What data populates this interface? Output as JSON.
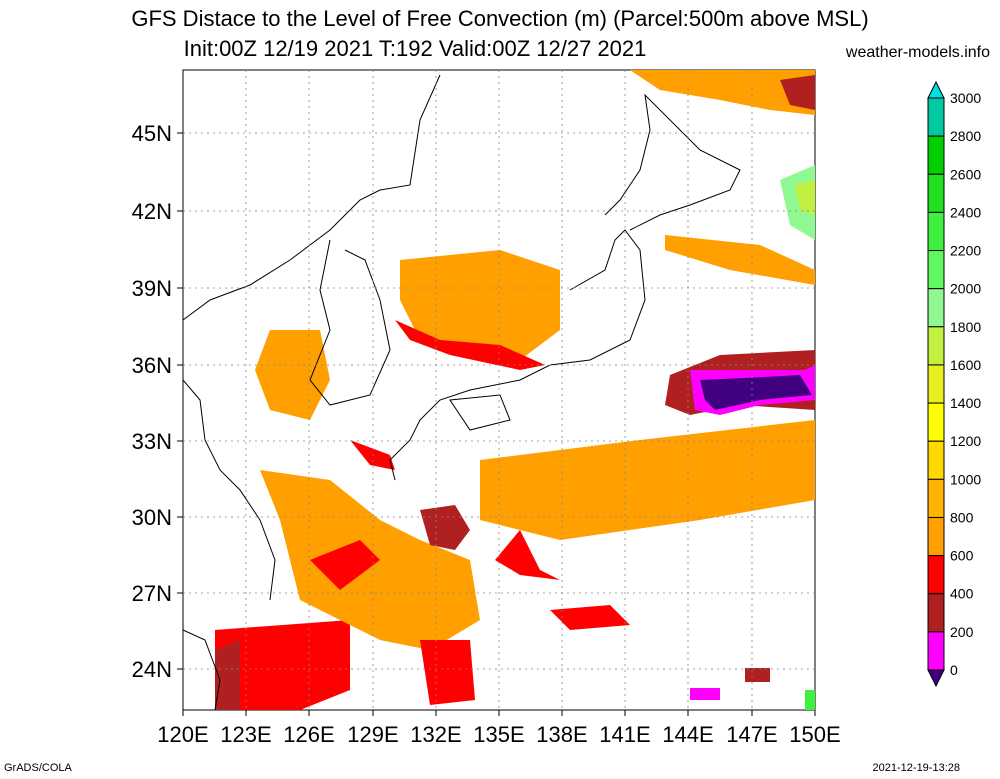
{
  "title": "GFS Distace to the Level of Free Convection (m) (Parcel:500m above MSL)",
  "subtitle": "Init:00Z 12/19 2021 T:192 Valid:00Z 12/27 2021",
  "site": "weather-models.info",
  "footer_left": "GrADS/COLA",
  "footer_right": "2021-12-19-13:28",
  "lat_labels": [
    "45N",
    "42N",
    "39N",
    "36N",
    "33N",
    "30N",
    "27N",
    "24N"
  ],
  "lon_labels": [
    "120E",
    "123E",
    "126E",
    "129E",
    "132E",
    "135E",
    "138E",
    "141E",
    "144E",
    "147E",
    "150E"
  ],
  "colorbar": {
    "labels": [
      "3000",
      "2800",
      "2600",
      "2400",
      "2200",
      "2000",
      "1800",
      "1600",
      "1400",
      "1200",
      "1000",
      "800",
      "600",
      "400",
      "200",
      "0"
    ],
    "colors": [
      "#00e0e0",
      "#00c8a0",
      "#00d000",
      "#20e020",
      "#40f040",
      "#60f860",
      "#90f890",
      "#c0f040",
      "#e8f020",
      "#ffff00",
      "#ffd800",
      "#ffb400",
      "#ffa000",
      "#ff0000",
      "#b02020",
      "#ff00ff",
      "#400080"
    ]
  }
}
